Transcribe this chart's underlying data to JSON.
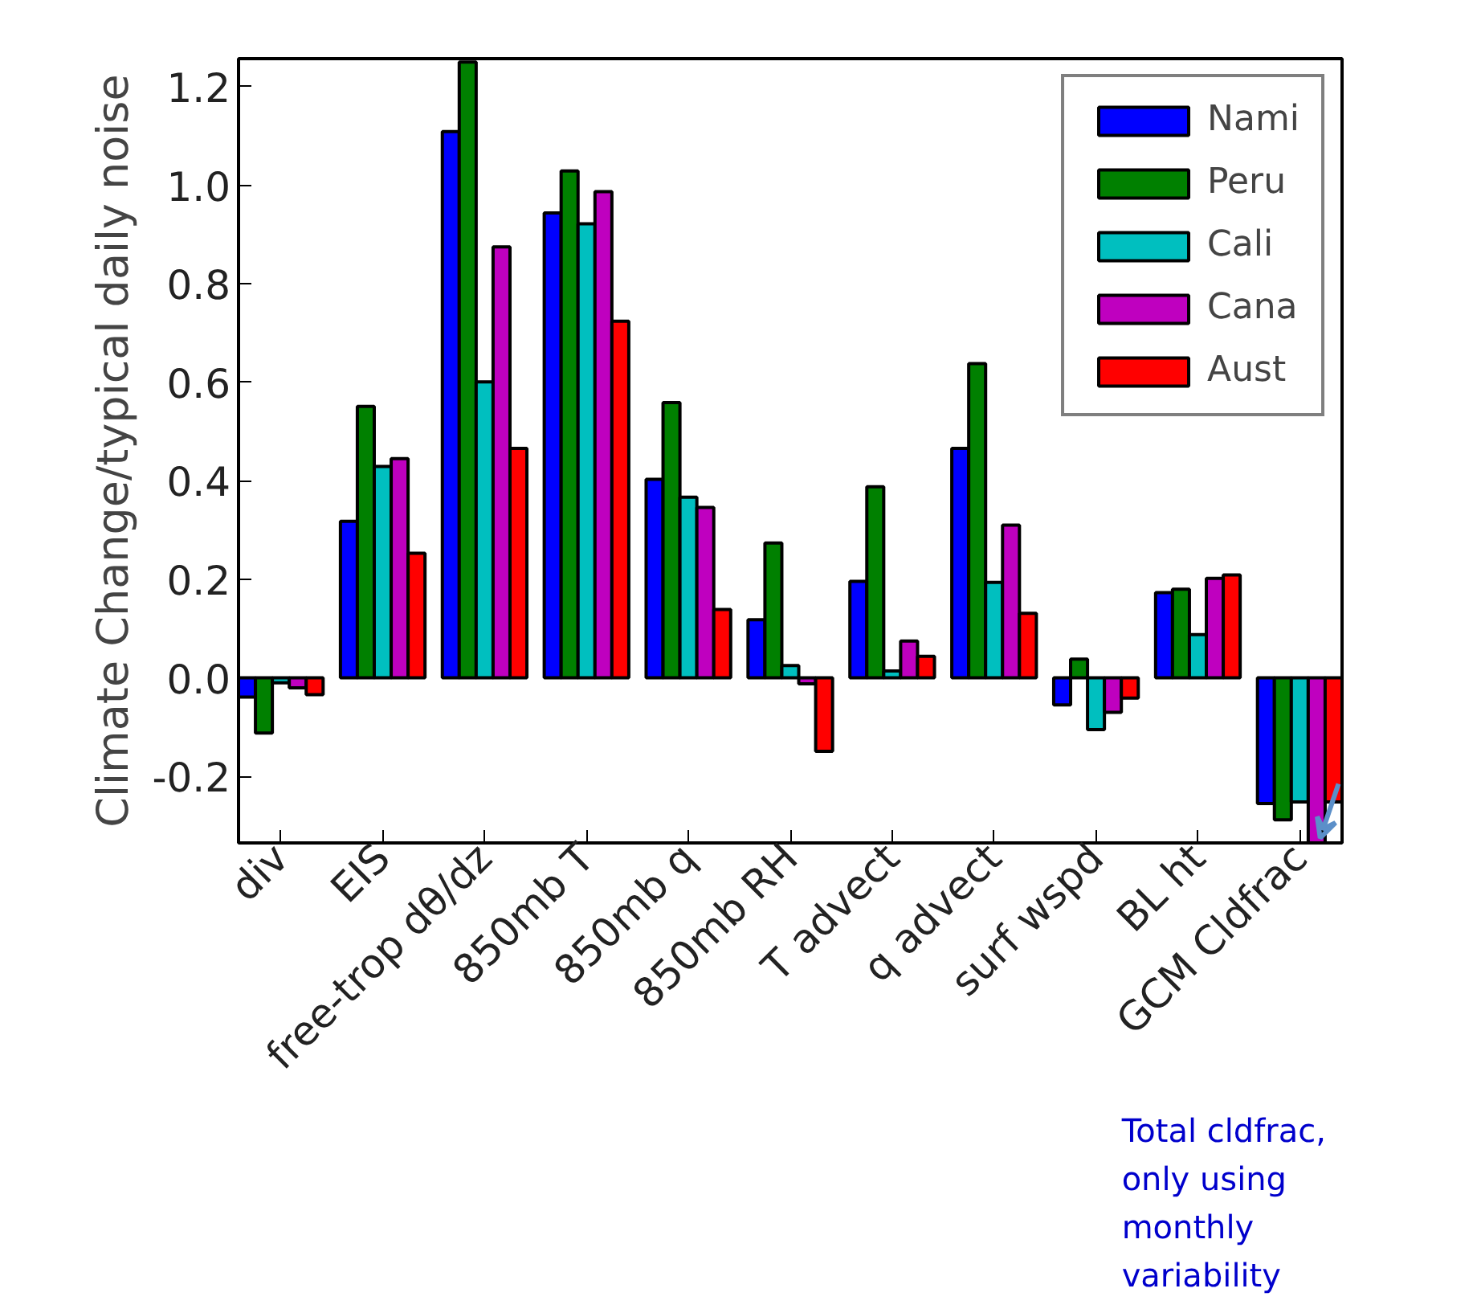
{
  "chart_data": {
    "type": "bar",
    "ylabel": "Climate Change/typical daily noise",
    "categories": [
      "div",
      "EIS",
      "free-trop dθ/dz",
      "850mb T",
      "850mb q",
      "850mb RH",
      "T advect",
      "q advect",
      "surf wspd",
      "BL ht",
      "GCM Cldfrac"
    ],
    "series": [
      {
        "name": "Nami",
        "color": "#0000ff",
        "values": [
          -0.039,
          0.318,
          1.109,
          0.944,
          0.403,
          0.118,
          0.196,
          0.466,
          -0.055,
          0.173,
          -0.255
        ]
      },
      {
        "name": "Peru",
        "color": "#008000",
        "values": [
          -0.112,
          0.551,
          1.25,
          1.029,
          0.559,
          0.274,
          0.388,
          0.638,
          0.038,
          0.18,
          -0.288
        ]
      },
      {
        "name": "Cali",
        "color": "#00bfbf",
        "values": [
          -0.01,
          0.429,
          0.601,
          0.922,
          0.367,
          0.025,
          0.014,
          0.194,
          -0.105,
          0.088,
          -0.252
        ]
      },
      {
        "name": "Cana",
        "color": "#bf00bf",
        "values": [
          -0.02,
          0.445,
          0.875,
          0.987,
          0.346,
          -0.012,
          0.075,
          0.31,
          -0.07,
          0.202,
          -0.335
        ]
      },
      {
        "name": "Aust",
        "color": "#ff0000",
        "values": [
          -0.034,
          0.253,
          0.466,
          0.724,
          0.139,
          -0.149,
          0.044,
          0.131,
          -0.041,
          0.209,
          -0.252
        ]
      }
    ],
    "ylim": [
      -0.335,
      1.257
    ],
    "yticks": [
      -0.2,
      {
        "value": 0,
        "label": "0.0"
      },
      0.2,
      0.4,
      0.6,
      0.8,
      {
        "value": 1,
        "label": "1.0"
      },
      1.2
    ],
    "legend": "top right",
    "annotations": [
      "Total cldfrac, only using monthly variability"
    ]
  }
}
